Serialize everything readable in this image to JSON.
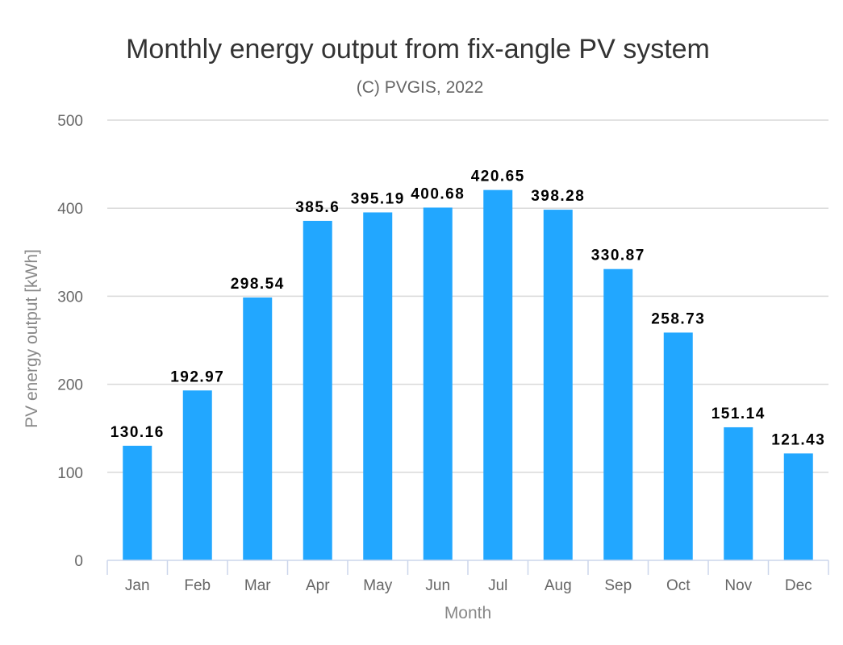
{
  "chart_data": {
    "type": "bar",
    "title": "Monthly energy output from fix-angle PV system",
    "subtitle": "(C) PVGIS, 2022",
    "xlabel": "Month",
    "ylabel": "PV energy output [kWh]",
    "ylim": [
      0,
      500
    ],
    "yticks": [
      0,
      100,
      200,
      300,
      400,
      500
    ],
    "grid": true,
    "legend": "none",
    "bar_color": "#22a7ff",
    "categories": [
      "Jan",
      "Feb",
      "Mar",
      "Apr",
      "May",
      "Jun",
      "Jul",
      "Aug",
      "Sep",
      "Oct",
      "Nov",
      "Dec"
    ],
    "values": [
      130.16,
      192.97,
      298.54,
      385.6,
      395.19,
      400.68,
      420.65,
      398.28,
      330.87,
      258.73,
      151.14,
      121.43
    ],
    "data_labels": [
      "130.16",
      "192.97",
      "298.54",
      "385.6",
      "395.19",
      "400.68",
      "420.65",
      "398.28",
      "330.87",
      "258.73",
      "151.14",
      "121.43"
    ]
  }
}
